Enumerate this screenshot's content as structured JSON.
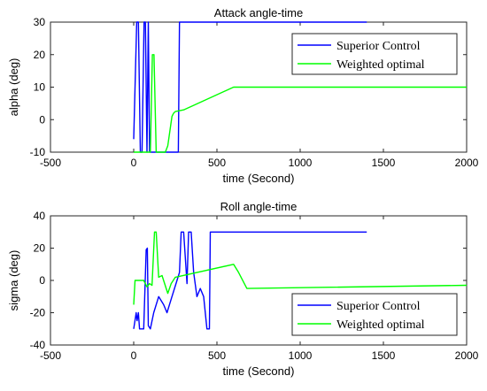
{
  "chart_data": [
    {
      "type": "line",
      "title": "Attack angle-time",
      "xlabel": "time (Second)",
      "ylabel": "alpha (deg)",
      "xlim": [
        -500,
        2000
      ],
      "ylim": [
        -10,
        30
      ],
      "xticks": [
        "-500",
        "0",
        "500",
        "1000",
        "1500",
        "2000"
      ],
      "yticks": [
        "-10",
        "0",
        "10",
        "20",
        "30"
      ],
      "grid": false,
      "legend_position": "top-right",
      "series": [
        {
          "name": "Superior Control",
          "color": "#0000ff",
          "x": [
            0,
            18,
            28,
            40,
            50,
            62,
            70,
            80,
            88,
            95,
            260,
            268,
            275,
            1400
          ],
          "y": [
            -6,
            30,
            30,
            -10,
            -10,
            30,
            30,
            -10,
            30,
            -10,
            -10,
            -10,
            30,
            30
          ]
        },
        {
          "name": "Weighted optimal",
          "color": "#00ff00",
          "x": [
            0,
            100,
            112,
            122,
            135,
            190,
            205,
            230,
            240,
            250,
            300,
            600,
            700,
            2000
          ],
          "y": [
            -10,
            -10,
            20,
            20,
            -10,
            -10,
            -8,
            1,
            2,
            2.5,
            3,
            10,
            10,
            10
          ]
        }
      ]
    },
    {
      "type": "line",
      "title": "Roll angle-time",
      "xlabel": "time (Second)",
      "ylabel": "sigma (deg)",
      "xlim": [
        -500,
        2000
      ],
      "ylim": [
        -40,
        40
      ],
      "xticks": [
        "-500",
        "0",
        "500",
        "1000",
        "1500",
        "2000"
      ],
      "yticks": [
        "-40",
        "-20",
        "0",
        "20",
        "40"
      ],
      "grid": false,
      "legend_position": "bottom-right",
      "series": [
        {
          "name": "Superior Control",
          "color": "#0000ff",
          "x": [
            0,
            15,
            20,
            28,
            35,
            60,
            75,
            82,
            88,
            100,
            120,
            150,
            180,
            200,
            230,
            260,
            275,
            285,
            300,
            320,
            330,
            345,
            360,
            380,
            400,
            420,
            440,
            455,
            460,
            1400
          ],
          "y": [
            -30,
            -20,
            -25,
            -20,
            -30,
            -30,
            19,
            20,
            -28,
            -30,
            -20,
            -10,
            -15,
            -20,
            -10,
            0,
            5,
            30,
            30,
            -2,
            30,
            30,
            5,
            -10,
            -5,
            -10,
            -30,
            -30,
            30,
            30
          ]
        },
        {
          "name": "Weighted optimal",
          "color": "#00ff00",
          "x": [
            0,
            8,
            60,
            80,
            95,
            110,
            125,
            135,
            150,
            170,
            195,
            205,
            225,
            250,
            600,
            630,
            680,
            2000
          ],
          "y": [
            -15,
            0,
            0,
            -4,
            -2,
            -3,
            30,
            30,
            2,
            3,
            -5,
            -8,
            -2,
            2,
            10,
            5,
            -5,
            -3
          ]
        }
      ]
    }
  ]
}
